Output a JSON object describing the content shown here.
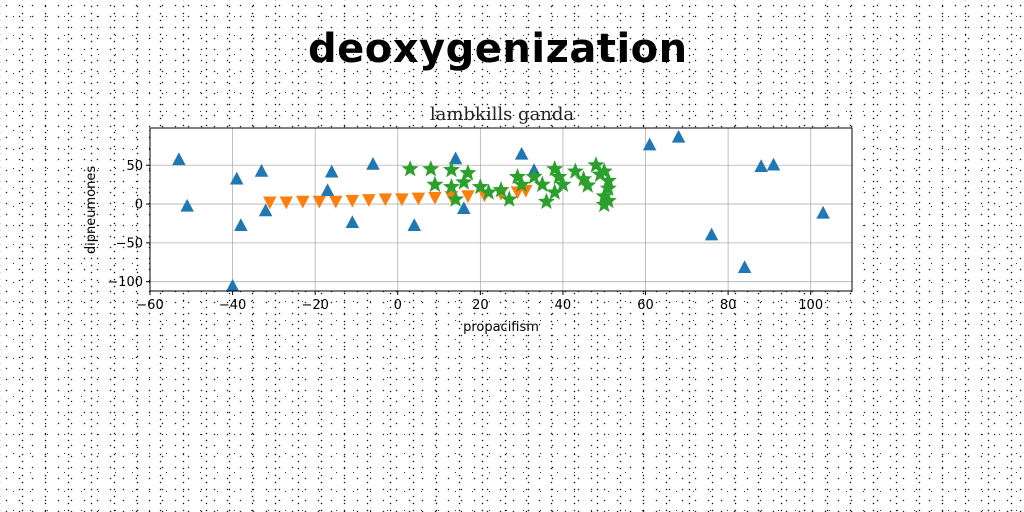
{
  "page": {
    "title": "deoxygenization"
  },
  "chart_data": {
    "type": "scatter",
    "title": "lambkills ganda",
    "xlabel": "propacifism",
    "ylabel": "dipneumones",
    "xlim": [
      -60,
      110
    ],
    "ylim": [
      -112,
      98
    ],
    "xticks": [
      -60,
      -40,
      -20,
      0,
      20,
      40,
      60,
      80,
      100
    ],
    "yticks": [
      -100,
      -50,
      0,
      50
    ],
    "xtick_labels": [
      "−60",
      "−40",
      "−20",
      "0",
      "20",
      "40",
      "60",
      "80",
      "100"
    ],
    "ytick_labels": [
      "−100",
      "−50",
      "0",
      "50"
    ],
    "grid": true,
    "legend": "none",
    "series": [
      {
        "marker": "triangle-up",
        "color": "#1f77b4",
        "points": [
          [
            -53,
            57
          ],
          [
            -51,
            -3
          ],
          [
            -39,
            32
          ],
          [
            -38,
            -28
          ],
          [
            -40,
            -106
          ],
          [
            -33,
            42
          ],
          [
            -32,
            -9
          ],
          [
            -16,
            41
          ],
          [
            -17,
            17
          ],
          [
            -11,
            -24
          ],
          [
            -6,
            51
          ],
          [
            4,
            -28
          ],
          [
            14,
            58
          ],
          [
            16,
            -6
          ],
          [
            30,
            64
          ],
          [
            33,
            43
          ],
          [
            61,
            76
          ],
          [
            68,
            86
          ],
          [
            76,
            -40
          ],
          [
            84,
            -82
          ],
          [
            88,
            48
          ],
          [
            91,
            50
          ],
          [
            103,
            -12
          ]
        ]
      },
      {
        "marker": "triangle-down",
        "color": "#ff7f0e",
        "points": [
          [
            -31,
            3
          ],
          [
            -27,
            3
          ],
          [
            -23,
            4
          ],
          [
            -19,
            4
          ],
          [
            -15,
            4
          ],
          [
            -11,
            5
          ],
          [
            -7,
            6
          ],
          [
            -3,
            7
          ],
          [
            1,
            7
          ],
          [
            5,
            8
          ],
          [
            9,
            9
          ],
          [
            13,
            10
          ],
          [
            17,
            11
          ],
          [
            21,
            12
          ],
          [
            25,
            14
          ],
          [
            29,
            16
          ],
          [
            31,
            18
          ]
        ]
      },
      {
        "marker": "star",
        "color": "#2ca02c",
        "points": [
          [
            3,
            45
          ],
          [
            8,
            45
          ],
          [
            13,
            44
          ],
          [
            17,
            40
          ],
          [
            9,
            25
          ],
          [
            13,
            22
          ],
          [
            16,
            28
          ],
          [
            14,
            6
          ],
          [
            20,
            22
          ],
          [
            22,
            15
          ],
          [
            25,
            18
          ],
          [
            27,
            6
          ],
          [
            30,
            25
          ],
          [
            29,
            35
          ],
          [
            33,
            35
          ],
          [
            35,
            25
          ],
          [
            36,
            3
          ],
          [
            38,
            15
          ],
          [
            38,
            45
          ],
          [
            39,
            35
          ],
          [
            40,
            25
          ],
          [
            43,
            42
          ],
          [
            45,
            32
          ],
          [
            46,
            24
          ],
          [
            48,
            50
          ],
          [
            49,
            38
          ],
          [
            50,
            42
          ],
          [
            51,
            30
          ],
          [
            51,
            20
          ],
          [
            50,
            10
          ],
          [
            51,
            4
          ],
          [
            50,
            -1
          ]
        ]
      }
    ]
  }
}
